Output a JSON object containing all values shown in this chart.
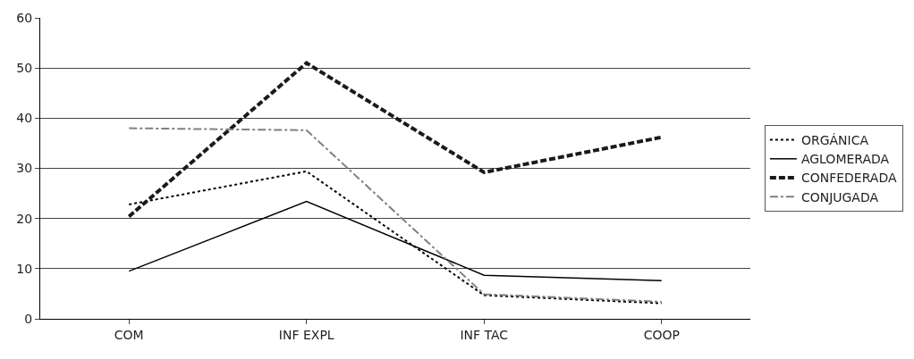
{
  "chart_data": {
    "type": "line",
    "categories": [
      "COM",
      "INF EXPL",
      "INF TAC",
      "COOP"
    ],
    "series": [
      {
        "name": "ORGÁNICA",
        "color": "#000000",
        "line_style": "dotted",
        "values": [
          22.8,
          29.4,
          4.7,
          3.1
        ]
      },
      {
        "name": "AGLOMERADA",
        "color": "#000000",
        "line_style": "solid",
        "values": [
          9.5,
          23.4,
          8.7,
          7.6
        ]
      },
      {
        "name": "CONFEDERADA",
        "color": "#1a1a1a",
        "line_style": "dashed",
        "values": [
          20.4,
          51.0,
          29.2,
          36.2
        ]
      },
      {
        "name": "CONJUGADA",
        "color": "#808080",
        "line_style": "dashdot",
        "values": [
          38.0,
          37.6,
          4.9,
          3.4
        ]
      }
    ],
    "ylim": [
      0,
      60
    ],
    "yticks": [
      0,
      10,
      20,
      30,
      40,
      50,
      60
    ],
    "grid": "y",
    "legend": "right",
    "marker": "none"
  }
}
